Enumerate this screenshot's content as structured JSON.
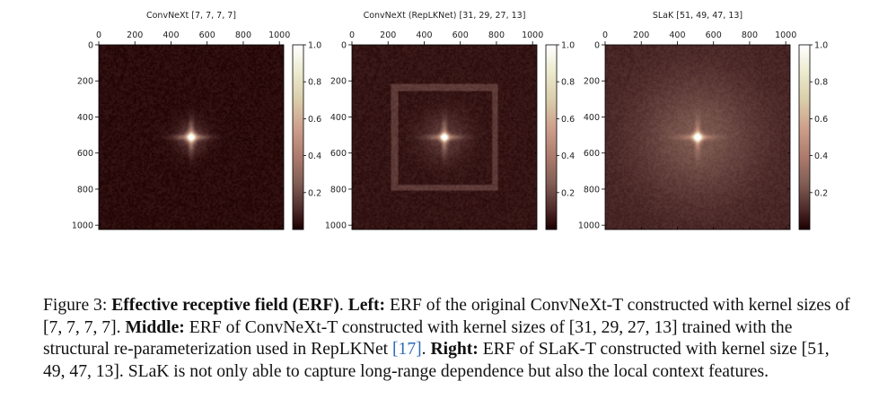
{
  "chart_data": [
    {
      "type": "heatmap",
      "title": "ConvNeXt [7, 7, 7, 7]",
      "x_ticks": [
        0,
        200,
        400,
        600,
        800,
        1000
      ],
      "y_ticks": [
        0,
        200,
        400,
        600,
        800,
        1000
      ],
      "xlim": [
        0,
        1024
      ],
      "ylim": [
        1024,
        0
      ],
      "colorbar_ticks": [
        0.2,
        0.4,
        0.6,
        0.8,
        1.0
      ],
      "colorbar_range": [
        0,
        1
      ],
      "colormap": "pink",
      "peak": {
        "x": 512,
        "y": 512,
        "value": 1.0
      },
      "background_level": 0.03,
      "glow": [
        {
          "sigma": 18,
          "amp": 0.75
        },
        {
          "sigma": 60,
          "amp": 0.12
        }
      ],
      "square_frame": null
    },
    {
      "type": "heatmap",
      "title": "ConvNeXt (RepLKNet) [31, 29, 27, 13]",
      "x_ticks": [
        0,
        200,
        400,
        600,
        800,
        1000
      ],
      "y_ticks": [
        0,
        200,
        400,
        600,
        800,
        1000
      ],
      "xlim": [
        0,
        1024
      ],
      "ylim": [
        1024,
        0
      ],
      "colorbar_ticks": [
        0.2,
        0.4,
        0.6,
        0.8,
        1.0
      ],
      "colorbar_range": [
        0,
        1
      ],
      "colormap": "pink",
      "peak": {
        "x": 512,
        "y": 512,
        "value": 1.0
      },
      "background_level": 0.05,
      "glow": [
        {
          "sigma": 16,
          "amp": 0.8
        },
        {
          "sigma": 90,
          "amp": 0.1
        }
      ],
      "square_frame": {
        "min": 235,
        "max": 790,
        "amp": 0.1
      }
    },
    {
      "type": "heatmap",
      "title": "SLaK [51, 49, 47, 13]",
      "x_ticks": [
        0,
        200,
        400,
        600,
        800,
        1000
      ],
      "y_ticks": [
        0,
        200,
        400,
        600,
        800,
        1000
      ],
      "xlim": [
        0,
        1024
      ],
      "ylim": [
        1024,
        0
      ],
      "colorbar_ticks": [
        0.2,
        0.4,
        0.6,
        0.8,
        1.0
      ],
      "colorbar_range": [
        0,
        1
      ],
      "colormap": "pink",
      "peak": {
        "x": 512,
        "y": 512,
        "value": 1.0
      },
      "background_level": 0.09,
      "glow": [
        {
          "sigma": 18,
          "amp": 0.75
        },
        {
          "sigma": 230,
          "amp": 0.14
        }
      ],
      "square_frame": null
    }
  ],
  "caption": {
    "label": "Figure 3:",
    "title": "Effective receptive field (ERF)",
    "left_label": "Left:",
    "left_text": "ERF of the original ConvNeXt-T constructed with kernel sizes of [7, 7, 7, 7].",
    "middle_label": "Middle:",
    "middle_text": "ERF of ConvNeXt-T constructed with kernel sizes of [31, 29, 27, 13] trained with the structural re-parameterization used in RepLKNet",
    "citation": "[17]",
    "right_label": "Right:",
    "right_text": "ERF of SLaK-T constructed with kernel size [51, 49, 47, 13]. SLaK is not only able to capture long-range dependence but also the local context features."
  }
}
